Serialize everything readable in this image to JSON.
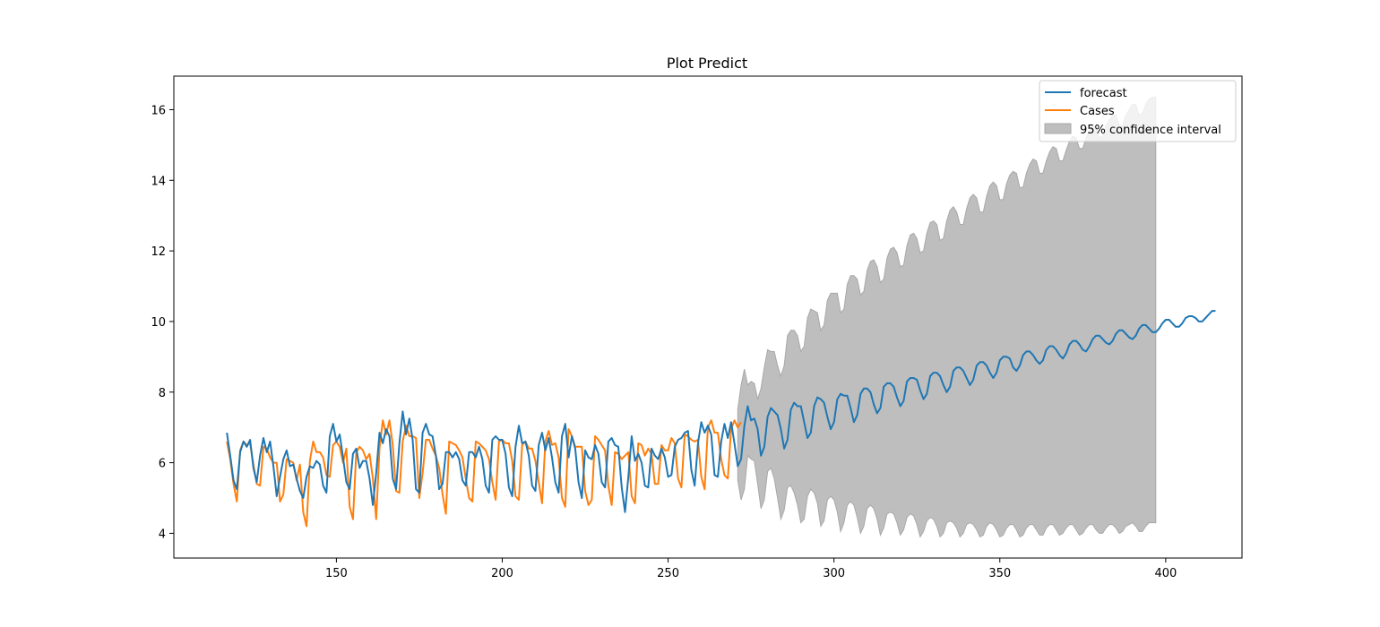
{
  "chart_data": {
    "type": "line",
    "title": "Plot Predict",
    "xlabel": "",
    "ylabel": "",
    "xlim": [
      101,
      423
    ],
    "ylim": [
      3.3,
      16.95
    ],
    "x_ticks": [
      150,
      200,
      250,
      300,
      350,
      400
    ],
    "y_ticks": [
      4,
      6,
      8,
      10,
      12,
      14,
      16
    ],
    "grid": false,
    "legend_position": "top-right",
    "legend": [
      "forecast",
      "Cases",
      "95% confidence interval"
    ],
    "colors": {
      "forecast": "#1f77b4",
      "cases": "#ff7f0e",
      "confidence_fill": "#bebebe",
      "confidence_edge": "#a8a8a8"
    },
    "series": [
      {
        "name": "forecast",
        "x_start": 117,
        "values": [
          6.85,
          6.2,
          5.5,
          5.25,
          6.3,
          6.6,
          6.45,
          6.65,
          5.85,
          5.45,
          6.2,
          6.7,
          6.3,
          6.6,
          5.9,
          5.05,
          5.6,
          6.1,
          6.35,
          5.9,
          5.95,
          5.55,
          5.2,
          5.0,
          5.6,
          5.9,
          5.85,
          6.05,
          5.95,
          5.35,
          5.15,
          6.75,
          7.1,
          6.6,
          6.8,
          6.15,
          5.45,
          5.25,
          6.25,
          6.4,
          5.85,
          6.05,
          6.05,
          5.55,
          4.8,
          5.7,
          6.85,
          6.55,
          6.95,
          6.75,
          5.55,
          5.25,
          6.55,
          7.45,
          6.8,
          7.25,
          6.65,
          5.25,
          5.15,
          6.85,
          7.1,
          6.8,
          6.75,
          6.2,
          5.25,
          5.4,
          6.3,
          6.3,
          6.15,
          6.3,
          6.1,
          5.5,
          5.35,
          6.3,
          6.3,
          6.15,
          6.45,
          6.1,
          5.35,
          5.15,
          6.65,
          6.75,
          6.65,
          6.65,
          6.25,
          5.3,
          5.05,
          6.45,
          7.05,
          6.55,
          6.6,
          6.2,
          5.35,
          5.2,
          6.5,
          6.85,
          6.35,
          6.7,
          6.15,
          5.45,
          5.15,
          6.75,
          7.1,
          6.15,
          6.75,
          6.4,
          5.45,
          5.0,
          6.35,
          6.15,
          6.1,
          6.5,
          6.25,
          5.45,
          5.3,
          6.6,
          6.7,
          6.5,
          6.45,
          5.3,
          4.6,
          5.6,
          6.75,
          6.05,
          6.25,
          6.0,
          5.35,
          5.3,
          6.4,
          6.2,
          6.1,
          6.4,
          6.15,
          5.6,
          5.65,
          6.45,
          6.65,
          6.7,
          6.85,
          6.9,
          5.8,
          5.35,
          6.55,
          7.15,
          6.85,
          7.05,
          6.8,
          5.65,
          5.6,
          6.6,
          7.1,
          6.7,
          7.15,
          6.55,
          5.9,
          6.1,
          7.05,
          7.6,
          7.2,
          7.25,
          6.95,
          6.2,
          6.45,
          7.3,
          7.55,
          7.45,
          7.35,
          6.95,
          6.4,
          6.65,
          7.5,
          7.7,
          7.6,
          7.6,
          7.15,
          6.7,
          6.85,
          7.6,
          7.85,
          7.8,
          7.7,
          7.3,
          6.95,
          7.15,
          7.8,
          7.95,
          7.9,
          7.9,
          7.55,
          7.15,
          7.35,
          7.95,
          8.1,
          8.1,
          8.0,
          7.65,
          7.4,
          7.55,
          8.15,
          8.25,
          8.25,
          8.15,
          7.85,
          7.6,
          7.75,
          8.3,
          8.4,
          8.4,
          8.35,
          8.05,
          7.8,
          7.95,
          8.45,
          8.55,
          8.55,
          8.45,
          8.2,
          8.0,
          8.15,
          8.6,
          8.7,
          8.7,
          8.6,
          8.4,
          8.2,
          8.35,
          8.75,
          8.85,
          8.85,
          8.75,
          8.55,
          8.4,
          8.55,
          8.9,
          9.0,
          9.0,
          8.95,
          8.7,
          8.6,
          8.75,
          9.05,
          9.15,
          9.15,
          9.05,
          8.9,
          8.8,
          8.9,
          9.2,
          9.3,
          9.3,
          9.2,
          9.05,
          8.95,
          9.1,
          9.35,
          9.45,
          9.45,
          9.35,
          9.2,
          9.15,
          9.3,
          9.5,
          9.6,
          9.6,
          9.5,
          9.4,
          9.35,
          9.45,
          9.65,
          9.75,
          9.75,
          9.65,
          9.55,
          9.5,
          9.6,
          9.8,
          9.9,
          9.9,
          9.8,
          9.7,
          9.7,
          9.8,
          9.95,
          10.05,
          10.05,
          9.95,
          9.85,
          9.85,
          9.95,
          10.1,
          10.15,
          10.15,
          10.1,
          10.0,
          10.0,
          10.1,
          10.2,
          10.3,
          10.3
        ]
      },
      {
        "name": "Cases",
        "x_start": 117,
        "values": [
          6.6,
          6.1,
          5.4,
          4.9,
          6.35,
          6.6,
          6.5,
          6.55,
          5.95,
          5.4,
          5.35,
          6.45,
          6.4,
          6.15,
          6.0,
          6.0,
          4.9,
          5.1,
          6.1,
          6.05,
          6.0,
          5.5,
          5.95,
          4.6,
          4.2,
          6.05,
          6.6,
          6.3,
          6.3,
          6.15,
          5.65,
          5.6,
          6.5,
          6.6,
          6.45,
          6.0,
          6.4,
          4.75,
          4.4,
          6.3,
          6.45,
          6.35,
          6.1,
          6.25,
          5.55,
          4.4,
          6.4,
          7.2,
          6.8,
          7.2,
          6.5,
          5.2,
          5.15,
          6.6,
          7.05,
          6.75,
          6.75,
          6.7,
          5.0,
          5.7,
          6.65,
          6.65,
          6.4,
          6.2,
          5.85,
          5.1,
          4.55,
          6.6,
          6.55,
          6.5,
          6.35,
          6.15,
          5.55,
          5.0,
          4.9,
          6.6,
          6.55,
          6.45,
          6.35,
          6.1,
          5.45,
          4.95,
          6.6,
          6.65,
          6.55,
          6.55,
          6.05,
          5.05,
          4.95,
          6.5,
          6.6,
          6.4,
          6.4,
          6.05,
          5.45,
          4.85,
          6.6,
          6.9,
          6.5,
          6.55,
          6.15,
          5.0,
          4.75,
          6.95,
          6.75,
          6.45,
          6.45,
          6.45,
          5.2,
          4.8,
          4.95,
          6.75,
          6.65,
          6.5,
          6.35,
          5.35,
          4.8,
          6.3,
          6.25,
          6.1,
          6.2,
          6.3,
          5.05,
          4.85,
          6.55,
          6.5,
          6.2,
          6.4,
          6.25,
          5.4,
          5.4,
          6.5,
          6.35,
          6.35,
          6.7,
          6.55,
          5.55,
          5.3,
          6.8,
          6.75,
          6.65,
          6.6,
          6.65,
          5.6,
          5.25,
          7.0,
          7.2,
          6.85,
          6.85,
          6.1,
          5.65,
          5.55,
          6.95,
          7.2,
          7.0,
          7.15
        ]
      }
    ],
    "confidence_interval": {
      "x_start": 271,
      "upper": [
        7.5,
        8.2,
        8.65,
        8.2,
        8.3,
        8.25,
        7.8,
        8.1,
        8.7,
        9.2,
        9.15,
        9.15,
        8.75,
        8.45,
        8.75,
        9.6,
        9.75,
        9.75,
        9.6,
        9.15,
        9.3,
        10.1,
        10.35,
        10.3,
        10.25,
        9.75,
        9.9,
        10.6,
        10.8,
        10.8,
        10.8,
        10.25,
        10.35,
        11.05,
        11.3,
        11.3,
        11.2,
        10.75,
        10.85,
        11.45,
        11.7,
        11.75,
        11.55,
        11.1,
        11.2,
        11.8,
        12.05,
        12.1,
        11.95,
        11.55,
        11.6,
        12.15,
        12.45,
        12.5,
        12.35,
        11.95,
        12.0,
        12.5,
        12.8,
        12.85,
        12.75,
        12.3,
        12.35,
        12.85,
        13.15,
        13.25,
        13.1,
        12.75,
        12.75,
        13.2,
        13.5,
        13.6,
        13.5,
        13.1,
        13.1,
        13.55,
        13.85,
        13.95,
        13.85,
        13.45,
        13.45,
        13.9,
        14.15,
        14.25,
        14.2,
        13.8,
        13.8,
        14.2,
        14.45,
        14.6,
        14.55,
        14.2,
        14.2,
        14.55,
        14.8,
        14.95,
        14.9,
        14.55,
        14.55,
        14.85,
        15.1,
        15.25,
        15.2,
        14.9,
        14.9,
        15.2,
        15.4,
        15.55,
        15.5,
        15.2,
        15.25,
        15.55,
        15.7,
        15.85,
        15.85,
        15.55,
        15.55,
        15.85,
        16.0,
        16.15,
        16.15,
        15.85,
        15.9,
        16.15,
        16.3,
        16.35,
        16.35
      ],
      "lower": [
        5.5,
        4.95,
        5.25,
        6.2,
        6.1,
        6.05,
        5.4,
        4.7,
        4.95,
        5.75,
        5.85,
        5.55,
        5.0,
        4.4,
        4.65,
        5.3,
        5.35,
        5.15,
        4.8,
        4.3,
        4.4,
        5.05,
        5.25,
        5.15,
        4.85,
        4.2,
        4.35,
        4.95,
        5.05,
        4.95,
        4.6,
        4.05,
        4.3,
        4.8,
        4.9,
        4.8,
        4.45,
        4.0,
        4.2,
        4.7,
        4.8,
        4.7,
        4.4,
        3.95,
        4.15,
        4.55,
        4.6,
        4.55,
        4.3,
        3.95,
        4.1,
        4.45,
        4.55,
        4.5,
        4.25,
        3.9,
        4.05,
        4.35,
        4.45,
        4.4,
        4.2,
        3.9,
        4.0,
        4.3,
        4.35,
        4.3,
        4.15,
        3.9,
        4.0,
        4.25,
        4.3,
        4.25,
        4.1,
        3.9,
        3.95,
        4.2,
        4.3,
        4.25,
        4.1,
        3.9,
        3.95,
        4.15,
        4.25,
        4.25,
        4.1,
        3.9,
        3.95,
        4.15,
        4.25,
        4.25,
        4.1,
        3.95,
        3.95,
        4.15,
        4.25,
        4.25,
        4.1,
        3.95,
        4.0,
        4.15,
        4.25,
        4.25,
        4.1,
        3.95,
        4.0,
        4.15,
        4.25,
        4.25,
        4.1,
        4.0,
        4.0,
        4.15,
        4.25,
        4.25,
        4.15,
        4.0,
        4.05,
        4.2,
        4.25,
        4.3,
        4.2,
        4.05,
        4.05,
        4.2,
        4.3,
        4.3,
        4.3
      ]
    }
  }
}
